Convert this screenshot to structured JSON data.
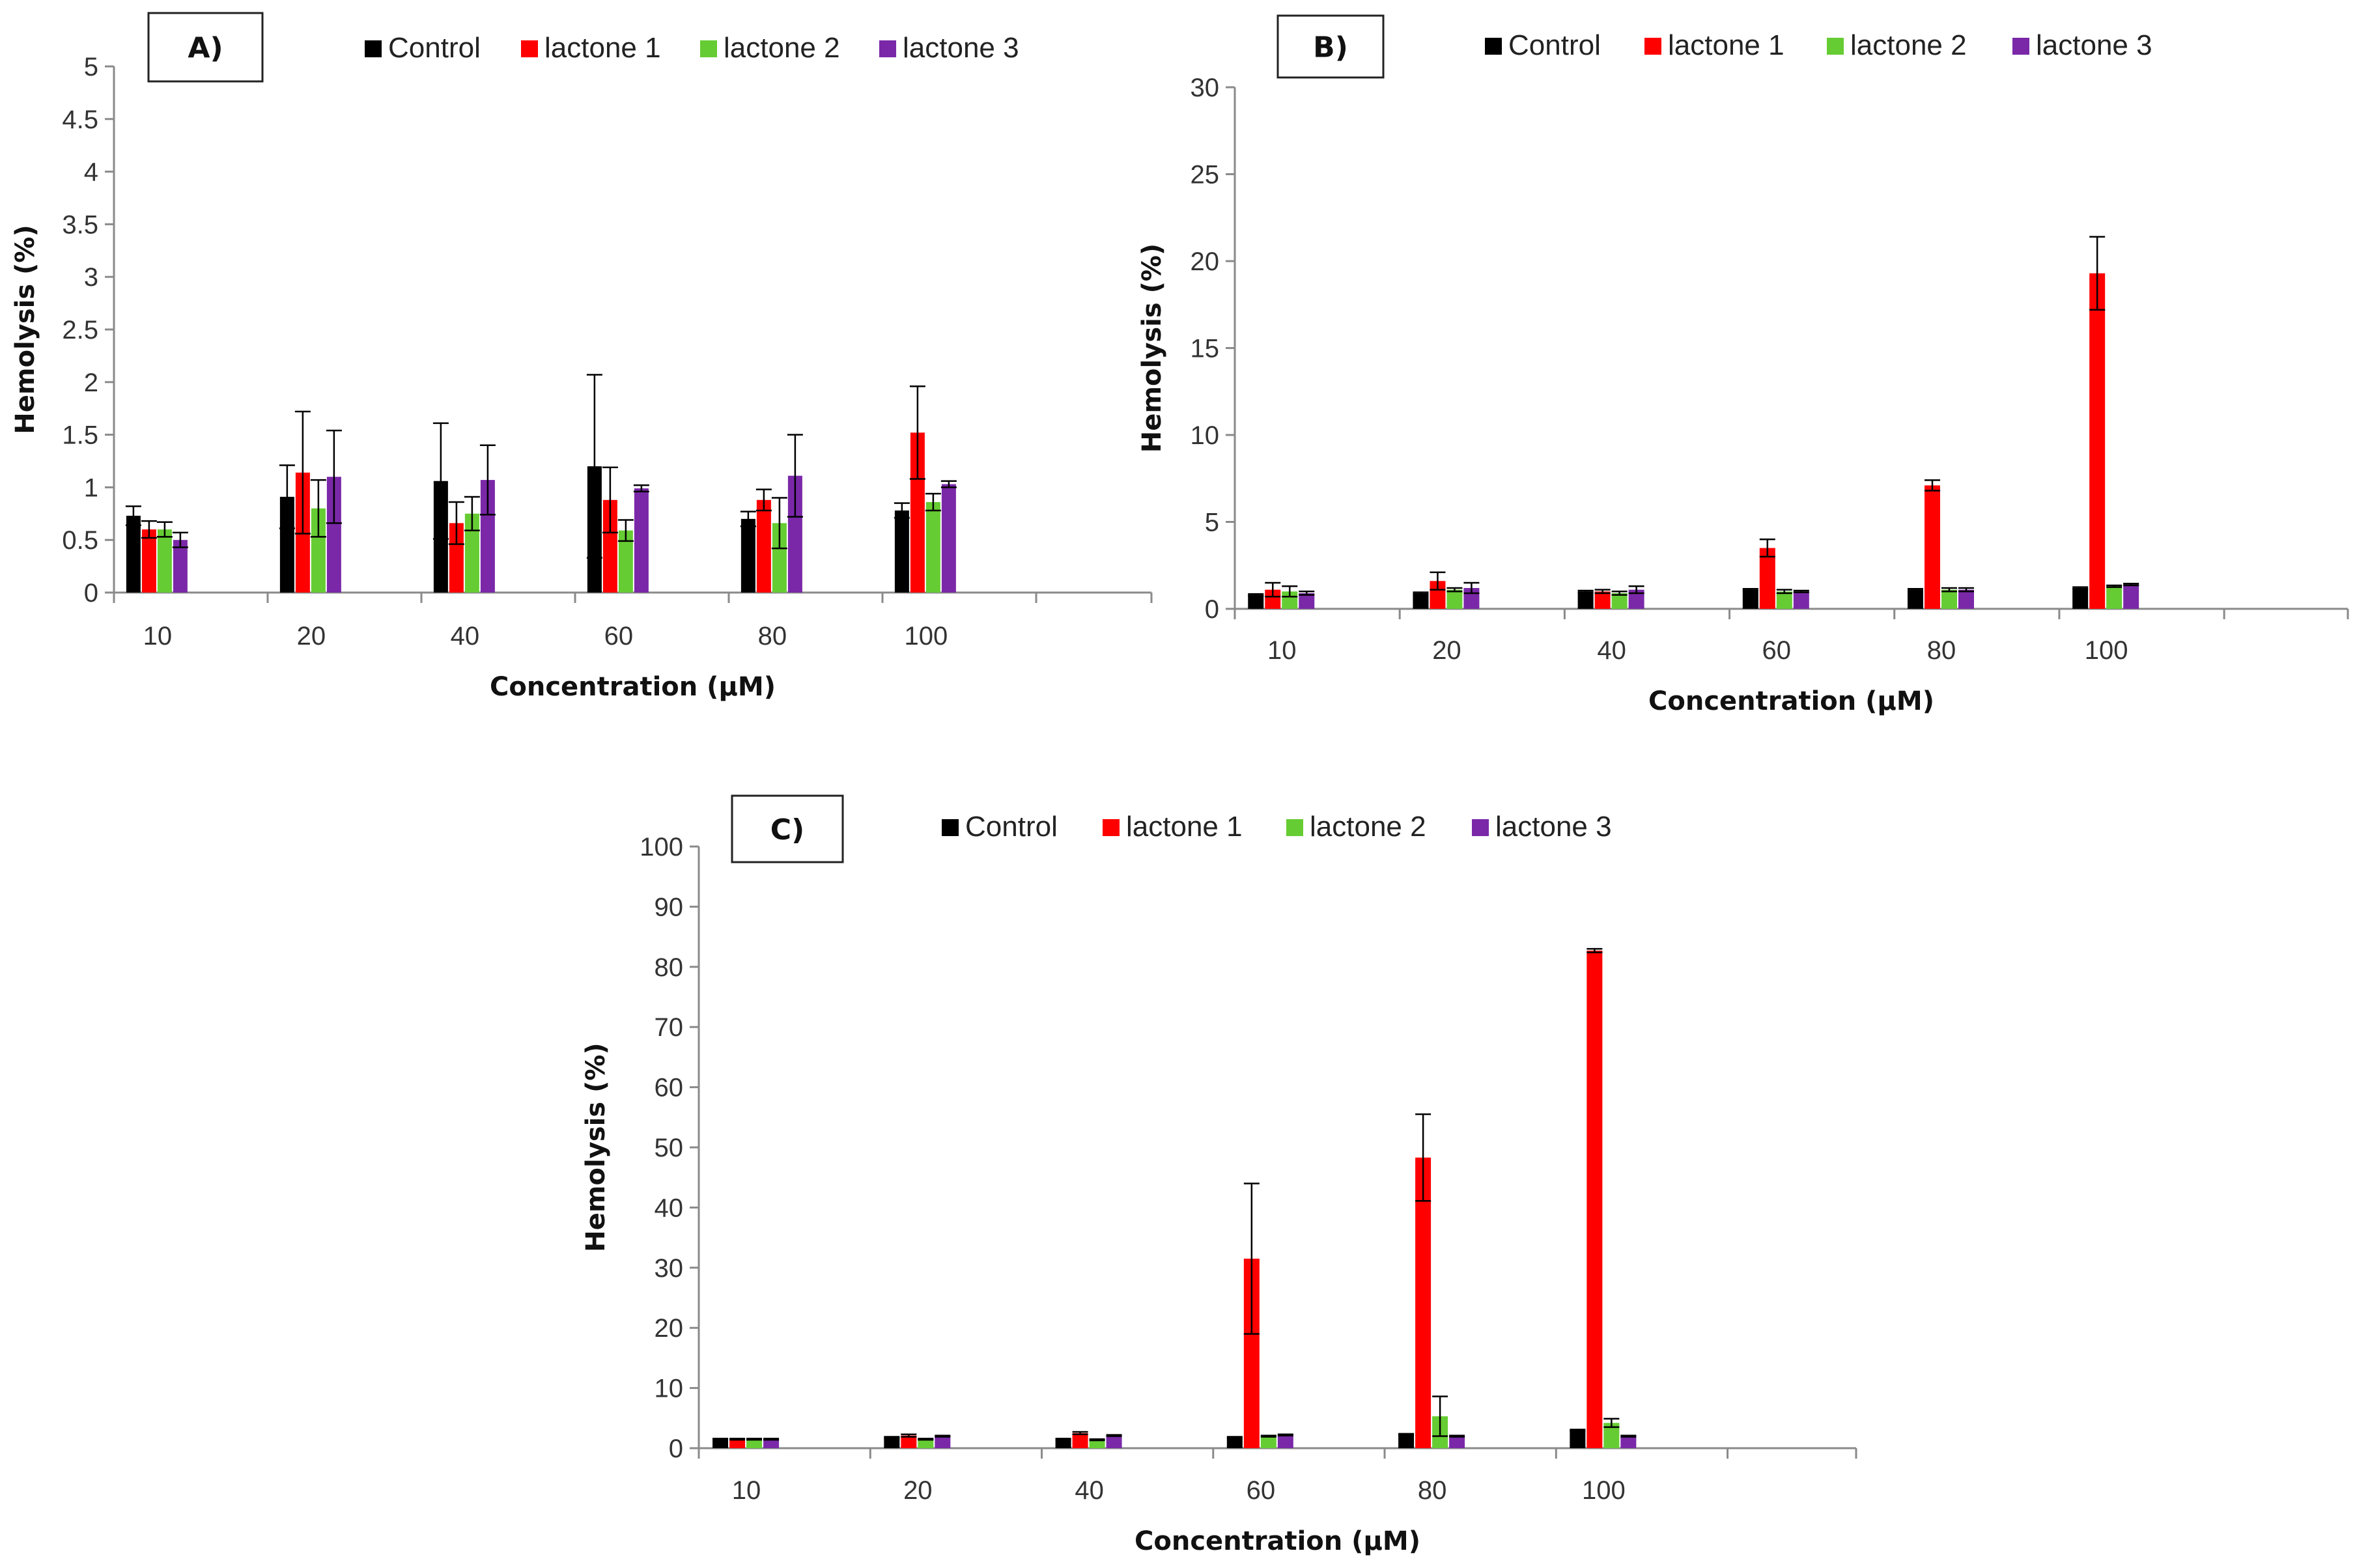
{
  "colors": {
    "Control": "#000000",
    "lactone 1": "#ff0000",
    "lactone 2": "#66cc33",
    "lactone 3": "#7a28a8"
  },
  "chart_data": [
    {
      "type": "bar",
      "panel_label": "A)",
      "xlabel": "Concentration (µM)",
      "ylabel": "Hemolysis (%)",
      "ylim": [
        0,
        5
      ],
      "yticks": [
        "0",
        "0.5",
        "1",
        "1.5",
        "2",
        "2.5",
        "3",
        "3.5",
        "4",
        "4.5",
        "5"
      ],
      "categories": [
        "10",
        "20",
        "40",
        "60",
        "80",
        "100"
      ],
      "legend_position": "top",
      "series": [
        {
          "name": "Control",
          "values": [
            0.73,
            0.91,
            1.06,
            1.2,
            0.7,
            0.78
          ],
          "errors": [
            0.09,
            0.3,
            0.55,
            0.87,
            0.07,
            0.07
          ]
        },
        {
          "name": "lactone 1",
          "values": [
            0.6,
            1.14,
            0.66,
            0.88,
            0.88,
            1.52
          ],
          "errors": [
            0.08,
            0.58,
            0.2,
            0.31,
            0.1,
            0.44
          ]
        },
        {
          "name": "lactone 2",
          "values": [
            0.6,
            0.8,
            0.75,
            0.59,
            0.66,
            0.86
          ],
          "errors": [
            0.07,
            0.27,
            0.16,
            0.1,
            0.24,
            0.08
          ]
        },
        {
          "name": "lactone 3",
          "values": [
            0.5,
            1.1,
            1.07,
            0.99,
            1.11,
            1.03
          ],
          "errors": [
            0.07,
            0.44,
            0.33,
            0.03,
            0.39,
            0.03
          ]
        }
      ]
    },
    {
      "type": "bar",
      "panel_label": "B)",
      "xlabel": "Concentration (µM)",
      "ylabel": "Hemolysis (%)",
      "ylim": [
        0,
        30
      ],
      "yticks": [
        "0",
        "5",
        "10",
        "15",
        "20",
        "25",
        "30"
      ],
      "categories": [
        "10",
        "20",
        "40",
        "60",
        "80",
        "100"
      ],
      "legend_position": "top",
      "series": [
        {
          "name": "Control",
          "values": [
            0.8,
            0.9,
            1.0,
            1.1,
            1.1,
            1.2
          ],
          "errors": [
            0.05,
            0.05,
            0.05,
            0.05,
            0.05,
            0.05
          ]
        },
        {
          "name": "lactone 1",
          "values": [
            1.1,
            1.6,
            1.0,
            3.5,
            7.1,
            19.3
          ],
          "errors": [
            0.4,
            0.5,
            0.1,
            0.5,
            0.3,
            2.1
          ]
        },
        {
          "name": "lactone 2",
          "values": [
            1.0,
            1.1,
            0.9,
            1.0,
            1.1,
            1.3
          ],
          "errors": [
            0.3,
            0.1,
            0.1,
            0.1,
            0.1,
            0.05
          ]
        },
        {
          "name": "lactone 3",
          "values": [
            0.9,
            1.2,
            1.1,
            1.0,
            1.1,
            1.4
          ],
          "errors": [
            0.1,
            0.3,
            0.2,
            0.05,
            0.1,
            0.05
          ]
        }
      ]
    },
    {
      "type": "bar",
      "panel_label": "C)",
      "xlabel": "Concentration (µM)",
      "ylabel": "Hemolysis (%)",
      "ylim": [
        0,
        100
      ],
      "yticks": [
        "0",
        "10",
        "20",
        "30",
        "40",
        "50",
        "60",
        "70",
        "80",
        "90",
        "100"
      ],
      "categories": [
        "10",
        "20",
        "40",
        "60",
        "80",
        "100"
      ],
      "legend_position": "top",
      "series": [
        {
          "name": "Control",
          "values": [
            1.5,
            1.8,
            1.5,
            1.8,
            2.3,
            3.0
          ],
          "errors": [
            0.1,
            0.1,
            0.1,
            0.1,
            0.1,
            0.1
          ]
        },
        {
          "name": "lactone 1",
          "values": [
            1.5,
            2.1,
            2.5,
            31.5,
            48.3,
            82.7
          ],
          "errors": [
            0.1,
            0.2,
            0.2,
            12.5,
            7.2,
            0.3
          ]
        },
        {
          "name": "lactone 2",
          "values": [
            1.5,
            1.5,
            1.4,
            2.0,
            5.3,
            4.2
          ],
          "errors": [
            0.1,
            0.1,
            0.1,
            0.1,
            3.3,
            0.7
          ]
        },
        {
          "name": "lactone 3",
          "values": [
            1.5,
            2.0,
            2.1,
            2.2,
            2.0,
            2.0
          ],
          "errors": [
            0.1,
            0.1,
            0.1,
            0.1,
            0.1,
            0.1
          ]
        }
      ]
    }
  ]
}
